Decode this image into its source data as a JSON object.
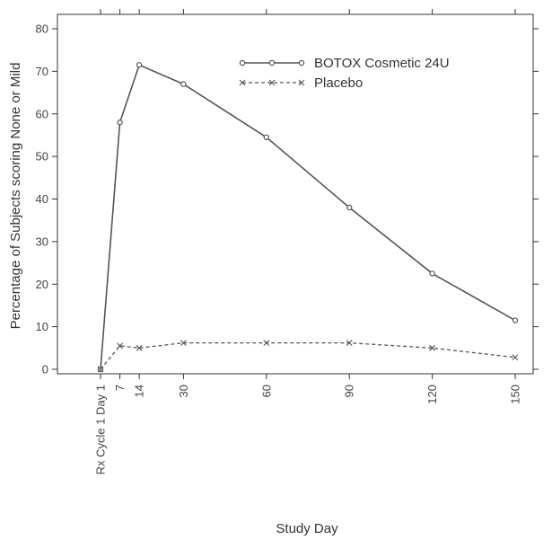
{
  "chart_data": {
    "type": "line",
    "xlabel": "Study Day",
    "ylabel": "Percentage of Subjects scoring None or Mild",
    "ylim": [
      0,
      80
    ],
    "yticks": [
      0,
      10,
      20,
      30,
      40,
      50,
      60,
      70,
      80
    ],
    "xticks": [
      {
        "value": 0,
        "label": "Rx Cycle 1 Day 1"
      },
      {
        "value": 7,
        "label": "7"
      },
      {
        "value": 14,
        "label": "14"
      },
      {
        "value": 30,
        "label": "30"
      },
      {
        "value": 60,
        "label": "60"
      },
      {
        "value": 90,
        "label": "90"
      },
      {
        "value": 120,
        "label": "120"
      },
      {
        "value": 150,
        "label": "150"
      }
    ],
    "legend_position": "top-right",
    "series": [
      {
        "name": "BOTOX Cosmetic 24U",
        "style": "solid",
        "marker": "circle",
        "color": "#555555",
        "x": [
          0,
          7,
          14,
          30,
          60,
          90,
          120,
          150
        ],
        "y": [
          0,
          58,
          71.5,
          67,
          54.5,
          38,
          22.5,
          11.5
        ]
      },
      {
        "name": "Placebo",
        "style": "dashed",
        "marker": "x",
        "color": "#555555",
        "x": [
          0,
          7,
          14,
          30,
          60,
          90,
          120,
          150
        ],
        "y": [
          0,
          5.5,
          5,
          6.2,
          6.2,
          6.2,
          5,
          2.8
        ]
      }
    ]
  }
}
